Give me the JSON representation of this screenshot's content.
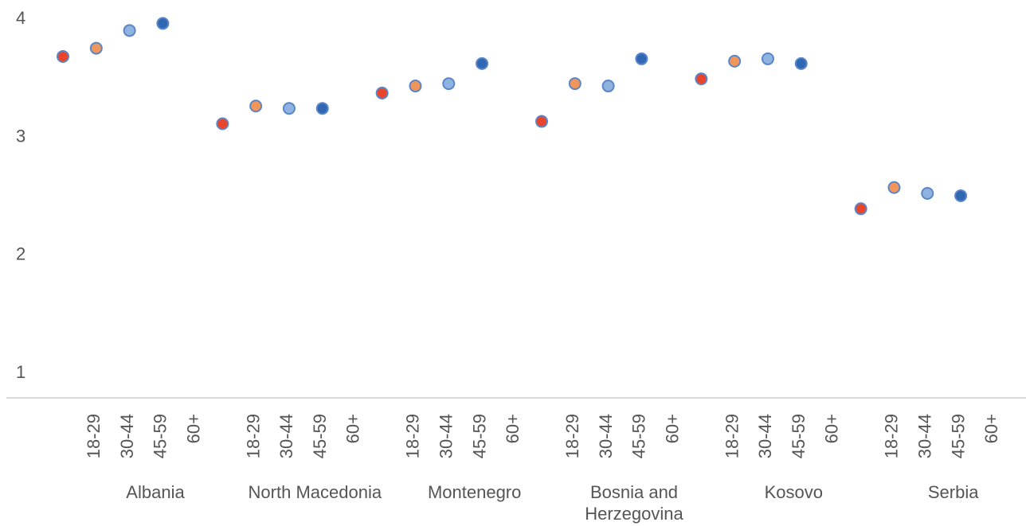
{
  "chart_data": {
    "type": "scatter",
    "title": "",
    "xlabel": "",
    "ylabel": "",
    "ylim": [
      1,
      4
    ],
    "yticks": [
      "1",
      "2",
      "3",
      "4"
    ],
    "grid": false,
    "legend": "none",
    "age_groups": [
      "18-29",
      "30-44",
      "45-59",
      "60+"
    ],
    "age_colors": [
      "#e8452a",
      "#f0965a",
      "#8fb3e0",
      "#2f67b3"
    ],
    "marker_edge": "#5b86c9",
    "groups": [
      {
        "name": "Albania",
        "values": [
          3.67,
          3.74,
          3.89,
          3.95
        ]
      },
      {
        "name": "North Macedonia",
        "values": [
          3.1,
          3.25,
          3.23,
          3.23
        ]
      },
      {
        "name": "Montenegro",
        "values": [
          3.36,
          3.42,
          3.44,
          3.61
        ]
      },
      {
        "name": "Bosnia and Herzegovina",
        "name_lines": [
          "Bosnia and",
          "Herzegovina"
        ],
        "values": [
          3.12,
          3.44,
          3.42,
          3.65
        ]
      },
      {
        "name": "Kosovo",
        "values": [
          3.48,
          3.63,
          3.65,
          3.61
        ]
      },
      {
        "name": "Serbia",
        "values": [
          2.38,
          2.56,
          2.51,
          2.49
        ]
      }
    ]
  }
}
